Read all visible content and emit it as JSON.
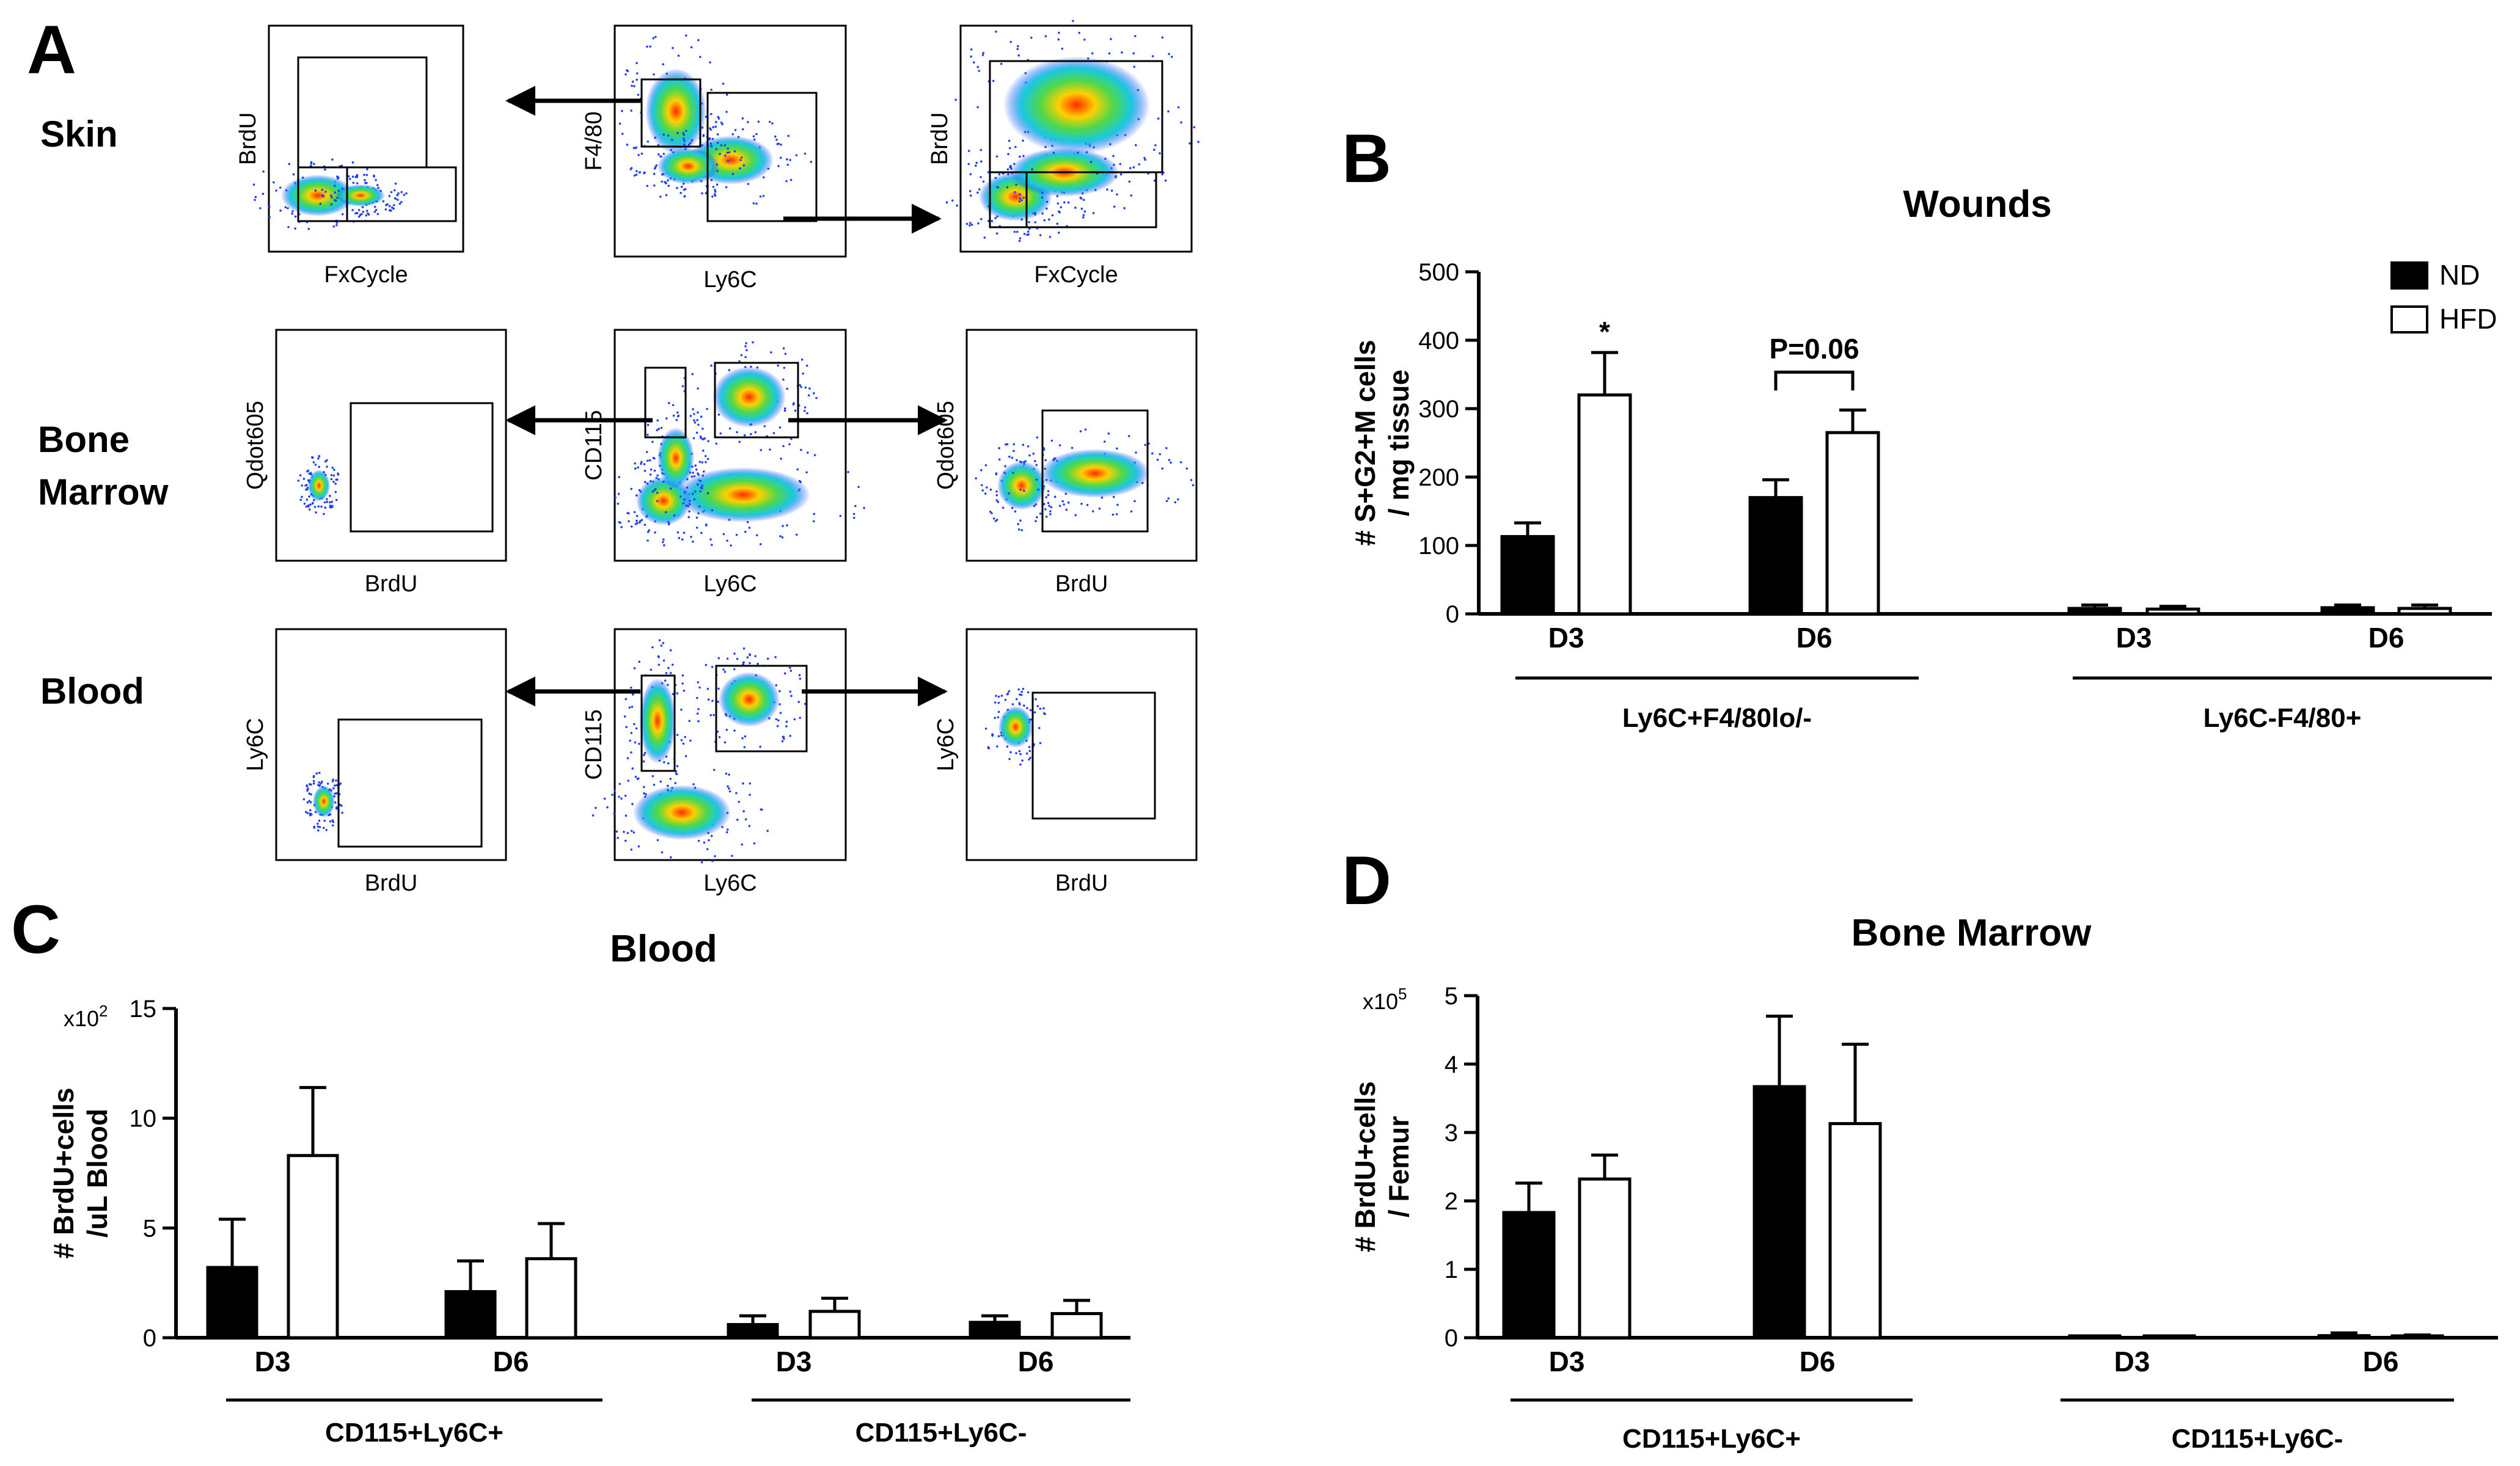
{
  "panel_letters": {
    "a": "A",
    "b": "B",
    "c": "C",
    "d": "D"
  },
  "flow": {
    "row_labels": {
      "skin": "Skin",
      "bone": "Bone",
      "marrow": "Marrow",
      "blood": "Blood"
    },
    "plots": [
      {
        "id": "skin-left",
        "x": "FxCycle",
        "y": "BrdU"
      },
      {
        "id": "skin-mid",
        "x": "Ly6C",
        "y": "F4/80"
      },
      {
        "id": "skin-right",
        "x": "FxCycle",
        "y": "BrdU"
      },
      {
        "id": "bm-left",
        "x": "BrdU",
        "y": "Qdot605"
      },
      {
        "id": "bm-mid",
        "x": "Ly6C",
        "y": "CD115"
      },
      {
        "id": "bm-right",
        "x": "BrdU",
        "y": "Qdot605"
      },
      {
        "id": "blood-left",
        "x": "BrdU",
        "y": "Ly6C"
      },
      {
        "id": "blood-mid",
        "x": "Ly6C",
        "y": "CD115"
      },
      {
        "id": "blood-right",
        "x": "BrdU",
        "y": "Ly6C"
      }
    ]
  },
  "legend": {
    "nd": "ND",
    "hfd": "HFD",
    "nd_color": "#000000",
    "hfd_color": "#ffffff"
  },
  "chart_data": [
    {
      "id": "B",
      "type": "bar",
      "title": "Wounds",
      "ylabel_line1": "# S+G2+M cells",
      "ylabel_line2": "/ mg tissue",
      "ylim": [
        0,
        500
      ],
      "yticks": [
        "0",
        "100",
        "200",
        "300",
        "400",
        "500"
      ],
      "categories": [
        "D3",
        "D6",
        "D3",
        "D6"
      ],
      "groups": [
        "Ly6C+F4/80lo/-",
        "Ly6C-F4/80+"
      ],
      "series": [
        {
          "name": "ND",
          "values": [
            113,
            170,
            8,
            9
          ],
          "errors": [
            20,
            26,
            5,
            4
          ]
        },
        {
          "name": "HFD",
          "values": [
            320,
            265,
            7,
            8
          ],
          "errors": [
            62,
            33,
            4,
            5
          ]
        }
      ],
      "annotations": {
        "star": "*",
        "pval": "P=0.06"
      }
    },
    {
      "id": "C",
      "type": "bar",
      "title": "Blood",
      "multiplier": "x10",
      "multiplier_exp": "2",
      "ylabel_line1": "# BrdU+cells",
      "ylabel_line2": "/uL Blood",
      "ylim": [
        0,
        15
      ],
      "yticks": [
        "0",
        "5",
        "10",
        "15"
      ],
      "categories": [
        "D3",
        "D6",
        "D3",
        "D6"
      ],
      "groups": [
        "CD115+Ly6C+",
        "CD115+Ly6C-"
      ],
      "series": [
        {
          "name": "ND",
          "values": [
            3.2,
            2.1,
            0.6,
            0.7
          ],
          "errors": [
            2.2,
            1.4,
            0.4,
            0.3
          ]
        },
        {
          "name": "HFD",
          "values": [
            8.3,
            3.6,
            1.2,
            1.1
          ],
          "errors": [
            3.1,
            1.6,
            0.6,
            0.6
          ]
        }
      ]
    },
    {
      "id": "D",
      "type": "bar",
      "title": "Bone Marrow",
      "multiplier": "x10",
      "multiplier_exp": "5",
      "ylabel_line1": "# BrdU+cells",
      "ylabel_line2": "/ Femur",
      "ylim": [
        0,
        5
      ],
      "yticks": [
        "0",
        "1",
        "2",
        "3",
        "4",
        "5"
      ],
      "categories": [
        "D3",
        "D6",
        "D3",
        "D6"
      ],
      "groups": [
        "CD115+Ly6C+",
        "CD115+Ly6C-"
      ],
      "series": [
        {
          "name": "ND",
          "values": [
            1.83,
            3.67,
            0.0,
            0.03
          ],
          "errors": [
            0.43,
            1.03,
            0.0,
            0.04
          ]
        },
        {
          "name": "HFD",
          "values": [
            2.32,
            3.13,
            0.01,
            0.02
          ],
          "errors": [
            0.35,
            1.16,
            0.01,
            0.02
          ]
        }
      ]
    }
  ]
}
